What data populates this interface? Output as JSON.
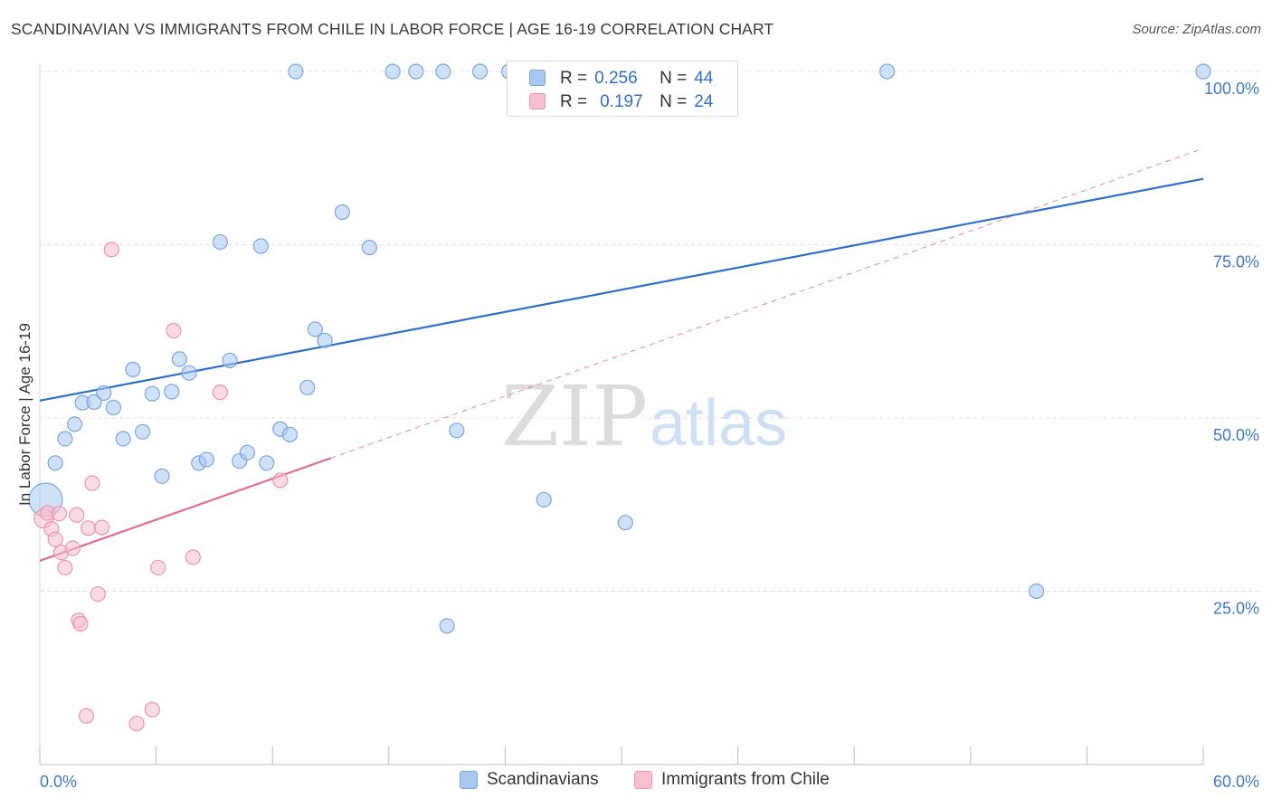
{
  "header": {
    "title": "SCANDINAVIAN VS IMMIGRANTS FROM CHILE IN LABOR FORCE | AGE 16-19 CORRELATION CHART",
    "source": "Source: ZipAtlas.com"
  },
  "watermark": {
    "part1": "ZIP",
    "part2": "atlas"
  },
  "legend": {
    "rows": [
      {
        "r_label": "R =",
        "r_value": "0.256",
        "n_label": "N =",
        "n_value": "44"
      },
      {
        "r_label": "R =",
        "r_value": "0.197",
        "n_label": "N =",
        "n_value": "24"
      }
    ]
  },
  "colors": {
    "blue_fill": "#a9c8f0",
    "blue_stroke": "#7aa6e0",
    "blue_line": "#2f6fc9",
    "pink_fill": "#f7bfd0",
    "pink_stroke": "#ee93af",
    "pink_line": "#e26a93",
    "axis_label": "#3f78c7",
    "grid": "#e2e2e2"
  },
  "chart_data": {
    "type": "scatter",
    "title": "SCANDINAVIAN VS IMMIGRANTS FROM CHILE IN LABOR FORCE | AGE 16-19 CORRELATION CHART",
    "xlabel": "",
    "ylabel": "In Labor Force | Age 16-19",
    "xlim": [
      0,
      60
    ],
    "ylim": [
      0,
      100
    ],
    "x_tick_labels": [
      "0.0%",
      "60.0%"
    ],
    "y_ticks": [
      25,
      50,
      75,
      100
    ],
    "y_tick_labels": [
      "25.0%",
      "50.0%",
      "75.0%",
      "100.0%"
    ],
    "grid": true,
    "legend_position": "top-center",
    "series": [
      {
        "name": "Scandinavians",
        "color": "#a9c8f0",
        "r": 0.256,
        "n": 44,
        "points": [
          [
            0.3,
            38.2,
            3
          ],
          [
            0.8,
            43.5,
            1
          ],
          [
            1.3,
            47.0,
            1
          ],
          [
            1.8,
            49.1,
            1
          ],
          [
            2.2,
            52.2,
            1
          ],
          [
            2.8,
            52.3,
            1
          ],
          [
            3.3,
            53.6,
            1
          ],
          [
            3.8,
            51.5,
            1
          ],
          [
            4.3,
            47.0,
            1
          ],
          [
            4.8,
            57.0,
            1
          ],
          [
            5.3,
            48.0,
            1
          ],
          [
            5.8,
            53.5,
            1
          ],
          [
            6.3,
            41.6,
            1
          ],
          [
            6.8,
            53.8,
            1
          ],
          [
            7.2,
            58.5,
            1
          ],
          [
            7.7,
            56.5,
            1
          ],
          [
            8.2,
            43.5,
            1
          ],
          [
            8.6,
            44.0,
            1
          ],
          [
            9.3,
            75.4,
            1
          ],
          [
            9.8,
            58.3,
            1
          ],
          [
            10.3,
            43.8,
            1
          ],
          [
            10.7,
            45.0,
            1
          ],
          [
            11.4,
            74.8,
            1
          ],
          [
            11.7,
            43.5,
            1
          ],
          [
            12.4,
            48.4,
            1
          ],
          [
            12.9,
            47.6,
            1
          ],
          [
            13.2,
            100.0,
            1
          ],
          [
            13.8,
            54.4,
            1
          ],
          [
            14.2,
            62.8,
            1
          ],
          [
            14.7,
            61.2,
            1
          ],
          [
            15.6,
            79.7,
            1
          ],
          [
            17.0,
            74.6,
            1
          ],
          [
            18.2,
            100.0,
            1
          ],
          [
            19.4,
            100.0,
            1
          ],
          [
            20.8,
            100.0,
            1
          ],
          [
            21.0,
            20.0,
            1
          ],
          [
            21.5,
            48.2,
            1
          ],
          [
            22.7,
            100.0,
            1
          ],
          [
            24.2,
            100.0,
            1
          ],
          [
            26.0,
            38.2,
            1
          ],
          [
            30.2,
            34.9,
            1
          ],
          [
            43.7,
            100.0,
            1
          ],
          [
            51.4,
            25.0,
            1
          ],
          [
            60.0,
            100.0,
            1
          ]
        ],
        "trend": {
          "x0": 0,
          "y0": 52.5,
          "x1": 60,
          "y1": 84.5
        }
      },
      {
        "name": "Immigrants from Chile",
        "color": "#f7bfd0",
        "r": 0.197,
        "n": 24,
        "points": [
          [
            0.2,
            35.5,
            2
          ],
          [
            0.4,
            36.3,
            1
          ],
          [
            0.6,
            34.0,
            1
          ],
          [
            0.8,
            32.5,
            1
          ],
          [
            1.0,
            36.2,
            1
          ],
          [
            1.1,
            30.6,
            1
          ],
          [
            1.3,
            28.4,
            1
          ],
          [
            1.7,
            31.2,
            1
          ],
          [
            1.9,
            36.0,
            1
          ],
          [
            2.0,
            20.8,
            1
          ],
          [
            2.1,
            20.3,
            1
          ],
          [
            2.4,
            7.0,
            1
          ],
          [
            2.5,
            34.1,
            1
          ],
          [
            2.7,
            40.6,
            1
          ],
          [
            3.0,
            24.6,
            1
          ],
          [
            3.2,
            34.2,
            1
          ],
          [
            3.7,
            74.3,
            1
          ],
          [
            5.0,
            5.9,
            1
          ],
          [
            5.8,
            7.9,
            1
          ],
          [
            6.1,
            28.4,
            1
          ],
          [
            6.9,
            62.6,
            1
          ],
          [
            7.9,
            29.9,
            1
          ],
          [
            9.3,
            53.7,
            1
          ],
          [
            12.4,
            41.0,
            1
          ]
        ],
        "trend": {
          "x0": 0,
          "y0": 29.4,
          "x1": 15,
          "y1": 44.2
        },
        "trend_extended": {
          "x0": 15,
          "y0": 44.2,
          "x1": 60,
          "y1": 88.9
        }
      }
    ]
  }
}
